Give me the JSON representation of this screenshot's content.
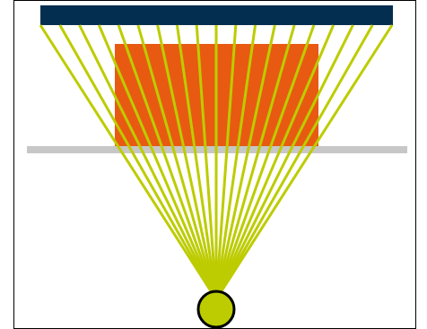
{
  "diagram": {
    "colors": {
      "background": "#ffffff",
      "frame": "#000000",
      "top_bar": "#032e4f",
      "block": "#e85a12",
      "divider": "#c7c7c7",
      "rays": "#bdcc00",
      "source_fill": "#bdcc00",
      "source_stroke": "#000000"
    },
    "ray_count": 19
  }
}
